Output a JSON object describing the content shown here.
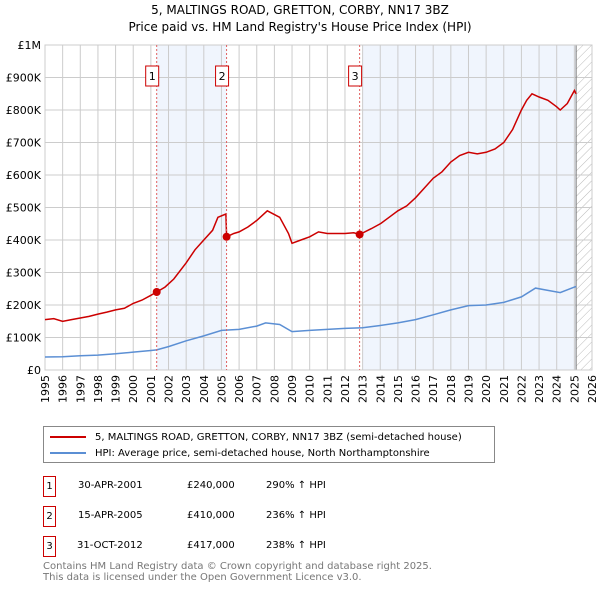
{
  "chart_data": {
    "type": "line",
    "title": "5, MALTINGS ROAD, GRETTON, CORBY, NN17 3BZ",
    "subtitle": "Price paid vs. HM Land Registry's House Price Index (HPI)",
    "xlim": [
      1995,
      2026
    ],
    "ylim": [
      0,
      1000000
    ],
    "x_ticks": [
      "1995",
      "1996",
      "1997",
      "1998",
      "1999",
      "2000",
      "2001",
      "2002",
      "2003",
      "2004",
      "2005",
      "2006",
      "2007",
      "2008",
      "2009",
      "2010",
      "2011",
      "2012",
      "2013",
      "2014",
      "2015",
      "2016",
      "2017",
      "2018",
      "2019",
      "2020",
      "2021",
      "2022",
      "2023",
      "2024",
      "2025",
      "2026"
    ],
    "y_ticks": [
      {
        "v": 0,
        "label": "£0"
      },
      {
        "v": 100000,
        "label": "£100K"
      },
      {
        "v": 200000,
        "label": "£200K"
      },
      {
        "v": 300000,
        "label": "£300K"
      },
      {
        "v": 400000,
        "label": "£400K"
      },
      {
        "v": 500000,
        "label": "£500K"
      },
      {
        "v": 600000,
        "label": "£600K"
      },
      {
        "v": 700000,
        "label": "£700K"
      },
      {
        "v": 800000,
        "label": "£800K"
      },
      {
        "v": 900000,
        "label": "£900K"
      },
      {
        "v": 1000000,
        "label": "£1M"
      }
    ],
    "grid": true,
    "forecast_start": 2025.1,
    "series": [
      {
        "name": "5, MALTINGS ROAD, GRETTON, CORBY, NN17 3BZ (semi-detached house)",
        "color": "#cc0000",
        "x": [
          1995,
          1995.5,
          1996,
          1996.5,
          1997,
          1997.5,
          1998,
          1998.5,
          1999,
          1999.5,
          2000,
          2000.5,
          2001,
          2001.33,
          2001.8,
          2002.3,
          2003,
          2003.5,
          2004,
          2004.5,
          2004.8,
          2005.25,
          2005.29,
          2005.7,
          2006,
          2006.5,
          2007,
          2007.6,
          2008.3,
          2008.8,
          2009,
          2009.5,
          2010,
          2010.5,
          2011,
          2011.5,
          2012,
          2012.5,
          2012.83,
          2013.5,
          2014,
          2014.5,
          2015,
          2015.5,
          2016,
          2016.5,
          2017,
          2017.5,
          2018,
          2018.5,
          2019,
          2019.5,
          2020,
          2020.5,
          2021,
          2021.5,
          2022,
          2022.3,
          2022.6,
          2023,
          2023.5,
          2024,
          2024.2,
          2024.6,
          2025,
          2025.1
        ],
        "y": [
          155000,
          158000,
          150000,
          155000,
          160000,
          165000,
          172000,
          178000,
          185000,
          190000,
          205000,
          215000,
          230000,
          240000,
          255000,
          280000,
          330000,
          370000,
          400000,
          430000,
          470000,
          480000,
          410000,
          420000,
          425000,
          440000,
          460000,
          490000,
          470000,
          420000,
          390000,
          400000,
          410000,
          425000,
          420000,
          420000,
          420000,
          422000,
          417000,
          435000,
          450000,
          470000,
          490000,
          505000,
          530000,
          560000,
          590000,
          610000,
          640000,
          660000,
          670000,
          665000,
          670000,
          680000,
          700000,
          740000,
          800000,
          830000,
          850000,
          840000,
          830000,
          810000,
          800000,
          820000,
          860000,
          850000
        ]
      },
      {
        "name": "HPI: Average price, semi-detached house, North Northamptonshire",
        "color": "#5b8fd4",
        "x": [
          1995,
          1996,
          1997,
          1998,
          1999,
          2000,
          2001,
          2001.33,
          2002,
          2003,
          2004,
          2005,
          2006,
          2007,
          2007.5,
          2008.3,
          2009,
          2010,
          2011,
          2012,
          2013,
          2014,
          2015,
          2016,
          2017,
          2018,
          2019,
          2020,
          2021,
          2022,
          2022.8,
          2023.5,
          2024.2,
          2025,
          2025.1
        ],
        "y": [
          40000,
          41000,
          44000,
          46000,
          50000,
          55000,
          60000,
          62000,
          72000,
          90000,
          105000,
          122000,
          125000,
          135000,
          145000,
          140000,
          118000,
          122000,
          125000,
          128000,
          130000,
          137000,
          145000,
          155000,
          170000,
          185000,
          198000,
          200000,
          208000,
          225000,
          252000,
          245000,
          238000,
          255000,
          257000
        ]
      }
    ],
    "sales": [
      {
        "label": "1",
        "x": 2001.33,
        "y": 240000
      },
      {
        "label": "2",
        "x": 2005.29,
        "y": 410000
      },
      {
        "label": "3",
        "x": 2012.83,
        "y": 417000
      }
    ]
  },
  "legend": {
    "items": [
      "5, MALTINGS ROAD, GRETTON, CORBY, NN17 3BZ (semi-detached house)",
      "HPI: Average price, semi-detached house, North Northamptonshire"
    ]
  },
  "transactions": [
    {
      "num": "1",
      "date": "30-APR-2001",
      "price": "£240,000",
      "hpi": "290% ↑ HPI"
    },
    {
      "num": "2",
      "date": "15-APR-2005",
      "price": "£410,000",
      "hpi": "236% ↑ HPI"
    },
    {
      "num": "3",
      "date": "31-OCT-2012",
      "price": "£417,000",
      "hpi": "238% ↑ HPI"
    }
  ],
  "footer": {
    "line1": "Contains HM Land Registry data © Crown copyright and database right 2025.",
    "line2": "This data is licensed under the Open Government Licence v3.0."
  }
}
